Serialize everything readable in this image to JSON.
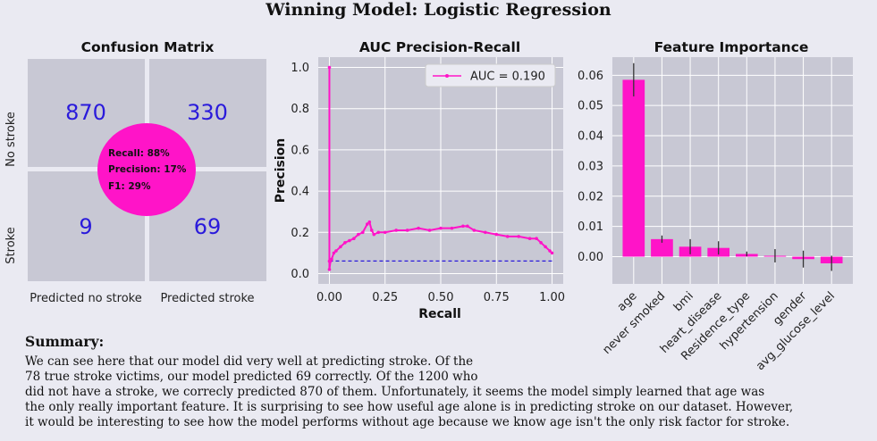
{
  "suptitle": "Winning Model: Logistic Regression",
  "colors": {
    "accent": "#ff14c8",
    "panel_bg": "#c8c8d4",
    "grid": "#ffffff",
    "count_text": "#2a1adb",
    "baseline": "#2a1adb"
  },
  "summary": {
    "heading": "Summary:",
    "lines": [
      "We can see here that our model did very well at predicting stroke. Of the",
      "78 true stroke victims, our model predicted 69 correctly. Of the 1200 who",
      "did not have a stroke, we correcly predicted 870 of them. Unfortunately, it seems the model simply learned that age was",
      "the only really important feature. It is surprising to see how useful age alone is in predicting stroke on our dataset. However,",
      "it would be interesting to see how the model performs without age because we know age isn't the only risk factor for stroke."
    ]
  },
  "chart_data": [
    {
      "type": "heatmap",
      "title": "Confusion Matrix",
      "row_labels": [
        "No stroke",
        "Stroke"
      ],
      "col_labels": [
        "Predicted no stroke",
        "Predicted stroke"
      ],
      "values": [
        [
          870,
          330
        ],
        [
          9,
          69
        ]
      ],
      "metrics": [
        "Recall: 88%",
        "Precision: 17%",
        "F1: 29%"
      ]
    },
    {
      "type": "line",
      "title": "AUC Precision-Recall",
      "xlabel": "Recall",
      "ylabel": "Precision",
      "xlim": [
        -0.05,
        1.05
      ],
      "ylim": [
        -0.05,
        1.05
      ],
      "xticks": [
        "0.00",
        "0.25",
        "0.50",
        "0.75",
        "1.00"
      ],
      "yticks": [
        "0.0",
        "0.2",
        "0.4",
        "0.6",
        "0.8",
        "1.0"
      ],
      "xtick_values": [
        0,
        0.25,
        0.5,
        0.75,
        1.0
      ],
      "ytick_values": [
        0,
        0.2,
        0.4,
        0.6,
        0.8,
        1.0
      ],
      "legend": "AUC = 0.190",
      "legend_position": "top-right",
      "baseline": 0.061,
      "series": [
        {
          "name": "AUC = 0.190",
          "x": [
            0.0,
            0.0,
            0.0,
            0.005,
            0.01,
            0.02,
            0.03,
            0.05,
            0.07,
            0.09,
            0.11,
            0.13,
            0.15,
            0.17,
            0.18,
            0.19,
            0.2,
            0.22,
            0.25,
            0.3,
            0.35,
            0.4,
            0.45,
            0.5,
            0.55,
            0.6,
            0.62,
            0.65,
            0.7,
            0.75,
            0.8,
            0.85,
            0.9,
            0.93,
            0.95,
            0.97,
            0.99,
            1.0
          ],
          "y": [
            1.0,
            0.06,
            0.02,
            0.06,
            0.07,
            0.1,
            0.11,
            0.13,
            0.15,
            0.16,
            0.17,
            0.19,
            0.2,
            0.24,
            0.25,
            0.21,
            0.19,
            0.2,
            0.2,
            0.21,
            0.21,
            0.22,
            0.21,
            0.22,
            0.22,
            0.23,
            0.23,
            0.21,
            0.2,
            0.19,
            0.18,
            0.18,
            0.17,
            0.17,
            0.15,
            0.13,
            0.11,
            0.1
          ]
        }
      ]
    },
    {
      "type": "bar",
      "title": "Feature Importance",
      "categories": [
        "age",
        "never smoked",
        "bmi",
        "heart_disease",
        "Residence_type",
        "hypertension",
        "gender",
        "avg_glucose_level"
      ],
      "values": [
        0.0585,
        0.0058,
        0.0033,
        0.0029,
        0.0009,
        0.0003,
        -0.0008,
        -0.0022
      ],
      "errors": [
        0.0055,
        0.0012,
        0.0025,
        0.0022,
        0.0008,
        0.0022,
        0.0028,
        0.0025
      ],
      "ylim": [
        -0.009,
        0.066
      ],
      "yticks": [
        "0.00",
        "0.01",
        "0.02",
        "0.03",
        "0.04",
        "0.05",
        "0.06"
      ],
      "ytick_values": [
        0,
        0.01,
        0.02,
        0.03,
        0.04,
        0.05,
        0.06
      ]
    }
  ]
}
